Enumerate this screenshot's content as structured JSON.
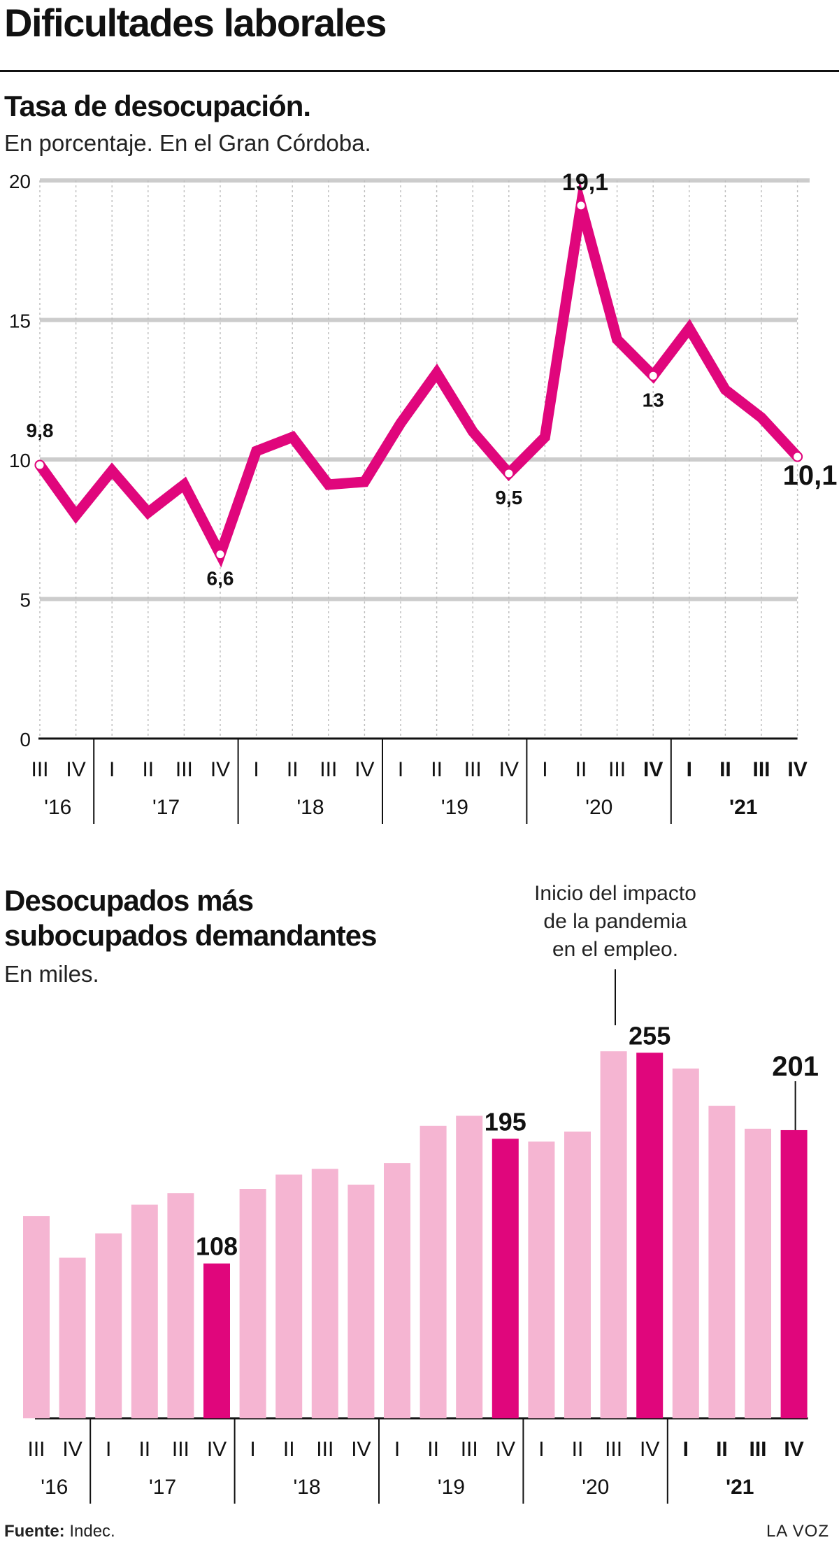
{
  "title": "Dificultades laborales",
  "chart1": {
    "title": "Tasa de desocupación.",
    "subtitle": "En porcentaje. En el Gran Córdoba.",
    "colors": {
      "line": "#e0067c",
      "grid": "#cccccc"
    }
  },
  "chart2": {
    "title_line1": "Desocupados más",
    "title_line2": "subocupados demandantes",
    "subtitle": "En miles.",
    "annotation": [
      "Inicio del impacto",
      "de la pandemia",
      "en el empleo."
    ],
    "colors": {
      "light": "#f5b5d2",
      "dark": "#e0067c"
    }
  },
  "chart_data": [
    {
      "type": "line",
      "title": "Tasa de desocupación.",
      "subtitle": "En porcentaje. En el Gran Córdoba.",
      "categories": [
        "III",
        "IV",
        "I",
        "II",
        "III",
        "IV",
        "I",
        "II",
        "III",
        "IV",
        "I",
        "II",
        "III",
        "IV",
        "I",
        "II",
        "III",
        "IV",
        "I",
        "II",
        "III",
        "IV"
      ],
      "years": [
        {
          "label": "'16",
          "count": 2
        },
        {
          "label": "'17",
          "count": 4
        },
        {
          "label": "'18",
          "count": 4
        },
        {
          "label": "'19",
          "count": 4
        },
        {
          "label": "'20",
          "count": 4
        },
        {
          "label": "'21",
          "count": 4
        }
      ],
      "values": [
        9.8,
        8.0,
        9.6,
        8.1,
        9.1,
        6.6,
        10.3,
        10.8,
        9.1,
        9.2,
        11.3,
        13.1,
        11.0,
        9.5,
        10.8,
        19.1,
        14.3,
        13,
        14.7,
        12.5,
        11.5,
        10.1
      ],
      "labels": [
        {
          "index": 0,
          "text": "9,8"
        },
        {
          "index": 5,
          "text": "6,6"
        },
        {
          "index": 13,
          "text": "9,5"
        },
        {
          "index": 15,
          "text": "19,1"
        },
        {
          "index": 17,
          "text": "13"
        },
        {
          "index": 21,
          "text": "10,1"
        }
      ],
      "yticks": [
        0,
        5,
        10,
        15,
        20
      ],
      "ylim": [
        0,
        20
      ],
      "bold_from": 17,
      "grid": true
    },
    {
      "type": "bar",
      "title": "Desocupados más subocupados demandantes",
      "subtitle": "En miles.",
      "categories": [
        "III",
        "IV",
        "I",
        "II",
        "III",
        "IV",
        "I",
        "II",
        "III",
        "IV",
        "I",
        "II",
        "III",
        "IV",
        "I",
        "II",
        "III",
        "IV",
        "I",
        "II",
        "III",
        "IV"
      ],
      "years": [
        {
          "label": "'16",
          "count": 2
        },
        {
          "label": "'17",
          "count": 4
        },
        {
          "label": "'18",
          "count": 4
        },
        {
          "label": "'19",
          "count": 4
        },
        {
          "label": "'20",
          "count": 4
        },
        {
          "label": "'21",
          "count": 4
        }
      ],
      "values": [
        141,
        112,
        129,
        149,
        157,
        108,
        160,
        170,
        174,
        163,
        178,
        204,
        211,
        195,
        193,
        200,
        256,
        255,
        244,
        218,
        202,
        201
      ],
      "highlight": [
        5,
        13,
        17,
        21
      ],
      "labels": [
        {
          "index": 5,
          "text": "108"
        },
        {
          "index": 13,
          "text": "195"
        },
        {
          "index": 17,
          "text": "255"
        },
        {
          "index": 21,
          "text": "201"
        }
      ],
      "bold_from": 18,
      "grid": false
    }
  ],
  "footer": {
    "source_label": "Fuente:",
    "source": " Indec.",
    "brand": "LA VOZ"
  }
}
